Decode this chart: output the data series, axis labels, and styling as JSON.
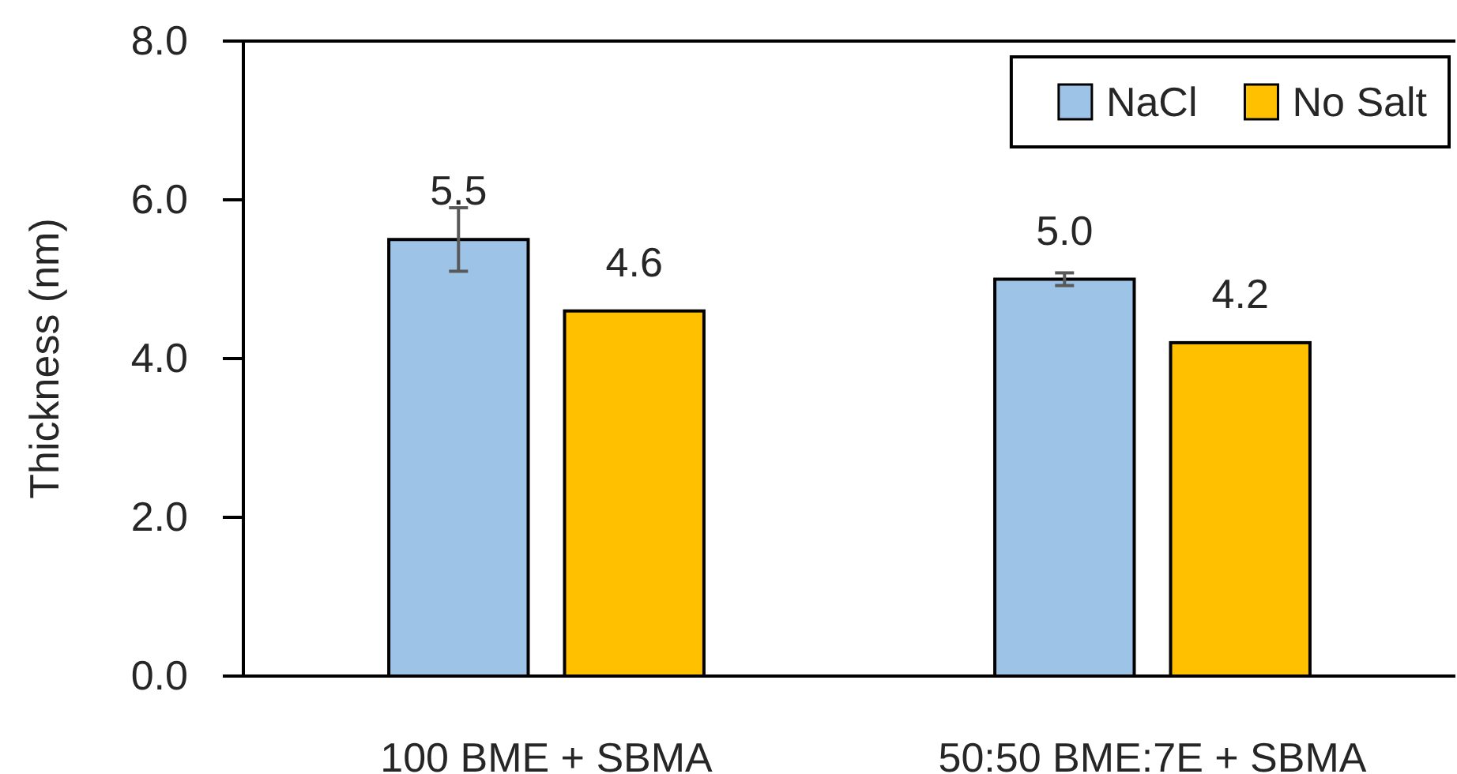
{
  "chart_data": {
    "type": "bar",
    "ylabel": "Thickness (nm)",
    "categories": [
      "100 BME + SBMA",
      "50:50 BME:7E + SBMA"
    ],
    "series": [
      {
        "name": "NaCl",
        "color": "#9dc3e6",
        "values": [
          5.5,
          5.0
        ],
        "errors": [
          0.4,
          0.08
        ],
        "value_labels": [
          "5.5",
          "5.0"
        ]
      },
      {
        "name": "No Salt",
        "color": "#ffc000",
        "values": [
          4.6,
          4.2
        ],
        "value_labels": [
          "4.6",
          "4.2"
        ]
      }
    ],
    "ylim": [
      0,
      8
    ],
    "yticks": [
      {
        "value": 0,
        "label": "0.0"
      },
      {
        "value": 2,
        "label": "2.0"
      },
      {
        "value": 4,
        "label": "4.0"
      },
      {
        "value": 6,
        "label": "6.0"
      },
      {
        "value": 8,
        "label": "8.0"
      }
    ],
    "legend": "top right"
  }
}
